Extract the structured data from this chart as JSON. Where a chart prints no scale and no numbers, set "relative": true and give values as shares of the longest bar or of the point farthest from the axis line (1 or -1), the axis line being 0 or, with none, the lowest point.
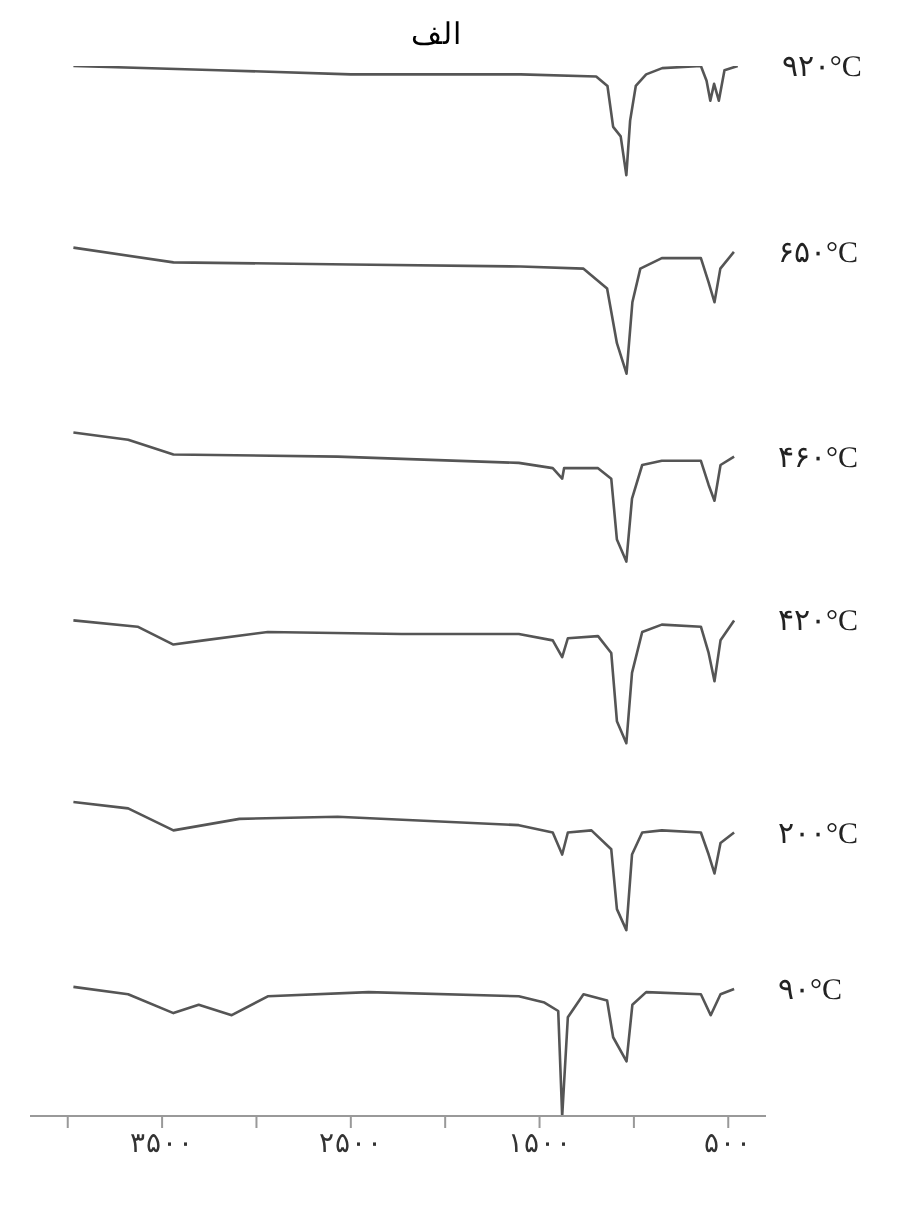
{
  "chart_data": {
    "type": "line",
    "title": "الف",
    "relative": true,
    "xlim": [
      4200,
      300
    ],
    "xticks": [
      {
        "value": 4000,
        "label": null
      },
      {
        "value": 3500,
        "label": "۳۵۰۰"
      },
      {
        "value": 3000,
        "label": null
      },
      {
        "value": 2500,
        "label": "۲۵۰۰"
      },
      {
        "value": 2000,
        "label": null
      },
      {
        "value": 1500,
        "label": "۱۵۰۰"
      },
      {
        "value": 1000,
        "label": null
      },
      {
        "value": 500,
        "label": "۵۰۰"
      }
    ],
    "legend": false,
    "grid": false,
    "marker": "none",
    "line_style": "solid",
    "series": [
      {
        "name": "۹۲۰°C",
        "color": "#555555",
        "x": [
          3970,
          3200,
          2500,
          1600,
          1200,
          1140,
          1110,
          1070,
          1040,
          1020,
          990,
          935,
          850,
          645,
          615,
          595,
          575,
          550,
          520,
          450
        ],
        "values": [
          1.0,
          0.996,
          0.992,
          0.992,
          0.99,
          0.981,
          0.942,
          0.933,
          0.896,
          0.948,
          0.981,
          0.992,
          0.998,
          1.0,
          0.986,
          0.967,
          0.983,
          0.967,
          0.996,
          1.0
        ]
      },
      {
        "name": "۶۵۰°C",
        "color": "#555555",
        "x": [
          3970,
          3440,
          2500,
          1600,
          1267,
          1142,
          1090,
          1039,
          1008,
          966,
          852,
          645,
          604,
          573,
          542,
          470
        ],
        "values": [
          0.827,
          0.813,
          0.811,
          0.809,
          0.807,
          0.788,
          0.736,
          0.707,
          0.775,
          0.807,
          0.817,
          0.817,
          0.794,
          0.775,
          0.807,
          0.823
        ]
      },
      {
        "name": "۴۶۰°C",
        "color": "#555555",
        "x": [
          3970,
          3680,
          3440,
          2570,
          1610,
          1430,
          1380,
          1370,
          1190,
          1120,
          1090,
          1040,
          1010,
          956,
          852,
          645,
          604,
          573,
          541,
          469
        ],
        "values": [
          0.651,
          0.644,
          0.63,
          0.628,
          0.622,
          0.617,
          0.607,
          0.617,
          0.617,
          0.607,
          0.549,
          0.528,
          0.588,
          0.62,
          0.624,
          0.624,
          0.601,
          0.586,
          0.62,
          0.628
        ]
      },
      {
        "name": "۴۲۰°C",
        "color": "#555555",
        "x": [
          3970,
          3630,
          3440,
          3280,
          2940,
          2230,
          1610,
          1430,
          1380,
          1350,
          1190,
          1120,
          1090,
          1040,
          1010,
          956,
          852,
          645,
          604,
          573,
          541,
          469
        ],
        "values": [
          0.472,
          0.466,
          0.449,
          0.453,
          0.461,
          0.459,
          0.459,
          0.453,
          0.437,
          0.455,
          0.457,
          0.441,
          0.376,
          0.355,
          0.422,
          0.461,
          0.468,
          0.466,
          0.441,
          0.414,
          0.453,
          0.472
        ]
      },
      {
        "name": "۲۰۰°C",
        "color": "#555555",
        "x": [
          3970,
          3680,
          3440,
          3090,
          2570,
          1610,
          1430,
          1380,
          1350,
          1225,
          1120,
          1090,
          1040,
          1010,
          956,
          852,
          645,
          604,
          573,
          541,
          469
        ],
        "values": [
          0.299,
          0.293,
          0.272,
          0.283,
          0.285,
          0.277,
          0.27,
          0.249,
          0.27,
          0.272,
          0.254,
          0.197,
          0.177,
          0.249,
          0.27,
          0.272,
          0.27,
          0.249,
          0.231,
          0.26,
          0.27
        ]
      },
      {
        "name": "۹۰°C",
        "color": "#555555",
        "x": [
          3970,
          3680,
          3440,
          3306,
          3131,
          2940,
          2406,
          1610,
          1474,
          1401,
          1380,
          1350,
          1267,
          1142,
          1110,
          1039,
          1008,
          935,
          645,
          593,
          541,
          469
        ],
        "values": [
          0.123,
          0.116,
          0.098,
          0.106,
          0.096,
          0.114,
          0.118,
          0.114,
          0.108,
          0.1,
          0,
          0.094,
          0.116,
          0.11,
          0.075,
          0.052,
          0.106,
          0.118,
          0.116,
          0.096,
          0.116,
          0.121
        ]
      }
    ]
  }
}
